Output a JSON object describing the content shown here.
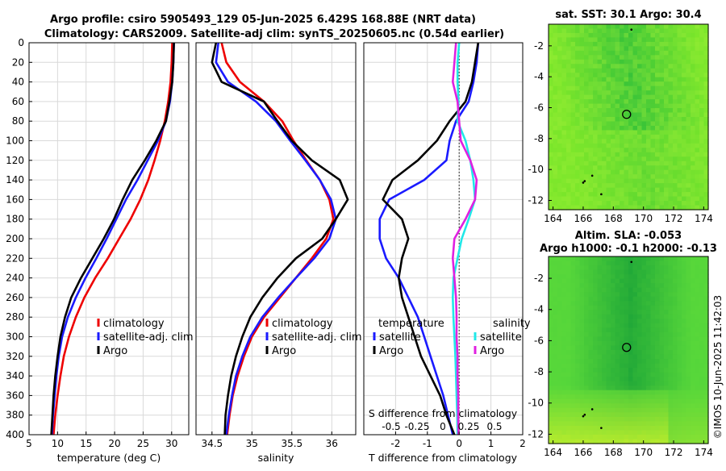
{
  "header": {
    "title_line1": "Argo profile: csiro 5905493_129 05-Jun-2025 6.429S 168.88E (NRT data)",
    "title_line2": "Climatology: CARS2009. Satellite-adj clim: synTS_20250605.nc (0.54d earlier)"
  },
  "colors": {
    "climatology": "#ee0000",
    "satellite": "#1a1aff",
    "argo": "#000000",
    "sal_diff": "#e020e0",
    "sal_sat": "#20e8e8"
  },
  "depth_ticks": [
    "0",
    "20",
    "40",
    "60",
    "80",
    "100",
    "120",
    "140",
    "160",
    "180",
    "200",
    "220",
    "240",
    "260",
    "280",
    "300",
    "320",
    "340",
    "360",
    "380",
    "400"
  ],
  "chart_data": [
    {
      "type": "line",
      "title": "",
      "xlabel": "temperature (deg C)",
      "ylabel": "",
      "xlim": [
        5,
        33
      ],
      "ylim": [
        400,
        0
      ],
      "xticks": [
        "5",
        "10",
        "15",
        "20",
        "25",
        "30"
      ],
      "xtick_values": [
        5,
        10,
        15,
        20,
        25,
        30
      ],
      "depth": [
        0,
        20,
        40,
        60,
        80,
        100,
        120,
        140,
        160,
        180,
        200,
        220,
        240,
        260,
        280,
        300,
        320,
        340,
        360,
        380,
        400
      ],
      "series": [
        {
          "name": "climatology",
          "color_key": "climatology",
          "values": [
            30.1,
            30.0,
            29.8,
            29.4,
            28.8,
            28.0,
            27.0,
            25.9,
            24.5,
            22.8,
            20.8,
            18.8,
            16.6,
            14.7,
            13.2,
            12.0,
            11.1,
            10.5,
            10.0,
            9.6,
            9.3
          ]
        },
        {
          "name": "satellite-adj. clim",
          "color_key": "satellite",
          "values": [
            30.4,
            30.3,
            30.1,
            29.7,
            29.0,
            27.6,
            25.8,
            24.0,
            22.0,
            20.3,
            18.6,
            16.8,
            14.9,
            13.2,
            11.8,
            10.8,
            10.2,
            9.8,
            9.5,
            9.2,
            9.0
          ]
        },
        {
          "name": "Argo",
          "color_key": "argo",
          "values": [
            30.4,
            30.3,
            30.1,
            29.6,
            29.0,
            27.3,
            25.3,
            23.1,
            21.4,
            19.9,
            18.1,
            16.1,
            14.1,
            12.4,
            11.3,
            10.5,
            10.0,
            9.6,
            9.3,
            9.1,
            8.9
          ]
        }
      ],
      "legend": [
        "climatology",
        "satellite-adj. clim",
        "Argo"
      ]
    },
    {
      "type": "line",
      "title": "",
      "xlabel": "salinity",
      "ylabel": "",
      "xlim": [
        34.3,
        36.3
      ],
      "ylim": [
        400,
        0
      ],
      "xticks": [
        "34.5",
        "35",
        "35.5",
        "36"
      ],
      "xtick_values": [
        34.5,
        35.0,
        35.5,
        36.0
      ],
      "depth": [
        0,
        20,
        40,
        60,
        80,
        100,
        120,
        140,
        160,
        180,
        200,
        220,
        240,
        260,
        280,
        300,
        320,
        340,
        360,
        380,
        400
      ],
      "series": [
        {
          "name": "climatology",
          "color_key": "climatology",
          "values": [
            34.62,
            34.68,
            34.85,
            35.15,
            35.38,
            35.52,
            35.68,
            35.85,
            35.97,
            36.02,
            35.93,
            35.75,
            35.55,
            35.35,
            35.15,
            35.0,
            34.9,
            34.82,
            34.76,
            34.72,
            34.69
          ]
        },
        {
          "name": "satellite-adj. clim",
          "color_key": "satellite",
          "values": [
            34.58,
            34.55,
            34.7,
            35.05,
            35.3,
            35.48,
            35.67,
            35.85,
            35.99,
            36.05,
            35.97,
            35.78,
            35.55,
            35.33,
            35.13,
            34.98,
            34.88,
            34.8,
            34.75,
            34.71,
            34.68
          ]
        },
        {
          "name": "Argo",
          "color_key": "argo",
          "values": [
            34.55,
            34.5,
            34.62,
            35.15,
            35.32,
            35.5,
            35.75,
            36.1,
            36.2,
            36.05,
            35.88,
            35.55,
            35.32,
            35.13,
            34.98,
            34.88,
            34.8,
            34.74,
            34.7,
            34.67,
            34.66
          ]
        }
      ],
      "legend": [
        "climatology",
        "satellite-adj. clim",
        "Argo"
      ]
    },
    {
      "type": "line",
      "title": "",
      "xlabel": "T difference from climatology",
      "xlabel_top": "S difference from climatology",
      "ylabel": "",
      "xlim": [
        -3,
        2
      ],
      "ylim": [
        400,
        0
      ],
      "xticks": [
        "-2",
        "-1",
        "0",
        "1",
        "2"
      ],
      "xtick_values": [
        -2,
        -1,
        0,
        1,
        2
      ],
      "s_xticks": [
        "-0.5",
        "-0.25",
        "0",
        "0.25",
        "0.5"
      ],
      "depth": [
        0,
        20,
        40,
        60,
        80,
        100,
        120,
        140,
        160,
        180,
        200,
        220,
        240,
        260,
        280,
        300,
        320,
        340,
        360,
        380,
        400
      ],
      "series": [
        {
          "name": "temperature satellite",
          "color_key": "satellite",
          "values": [
            0.6,
            0.55,
            0.45,
            0.3,
            -0.1,
            -0.3,
            -0.4,
            -1.1,
            -2.2,
            -2.5,
            -2.5,
            -2.3,
            -1.9,
            -1.6,
            -1.3,
            -1.1,
            -0.9,
            -0.7,
            -0.5,
            -0.35,
            -0.2
          ]
        },
        {
          "name": "temperature Argo",
          "color_key": "argo",
          "values": [
            0.6,
            0.5,
            0.4,
            0.2,
            -0.3,
            -0.7,
            -1.3,
            -2.1,
            -2.4,
            -1.8,
            -1.6,
            -1.8,
            -1.9,
            -1.8,
            -1.6,
            -1.4,
            -1.2,
            -0.9,
            -0.6,
            -0.4,
            -0.15
          ]
        },
        {
          "name": "salinity satellite",
          "color_key": "sal_sat",
          "values": [
            0.0,
            -0.05,
            -0.05,
            -0.02,
            -0.05,
            0.2,
            0.35,
            0.45,
            0.5,
            0.3,
            0.08,
            -0.05,
            -0.18,
            -0.2,
            -0.18,
            -0.15,
            -0.12,
            -0.1,
            -0.08,
            -0.06,
            -0.05
          ]
        },
        {
          "name": "salinity Argo",
          "color_key": "sal_diff",
          "values": [
            -0.1,
            -0.15,
            -0.2,
            -0.05,
            0.0,
            0.05,
            0.35,
            0.55,
            0.5,
            0.2,
            -0.15,
            -0.2,
            -0.15,
            -0.1,
            -0.08,
            -0.08,
            -0.05,
            -0.05,
            -0.03,
            -0.03,
            -0.02
          ]
        }
      ],
      "legend_left": {
        "title": "temperature",
        "items": [
          "satellite",
          "Argo"
        ]
      },
      "legend_right": {
        "title": "salinity",
        "items": [
          "satellite",
          "Argo"
        ]
      }
    },
    {
      "type": "heatmap",
      "title": "sat. SST: 30.1 Argo: 30.4",
      "xticks": [
        "164",
        "166",
        "168",
        "170",
        "172",
        "174"
      ],
      "yticks": [
        "-2",
        "-4",
        "-6",
        "-8",
        "-10",
        "-12"
      ],
      "xlim": [
        163.7,
        174.3
      ],
      "ylim": [
        -12.6,
        -0.6
      ],
      "marker": {
        "lon": 168.88,
        "lat": -6.43
      }
    },
    {
      "type": "heatmap",
      "title_line1": "Altim. SLA: -0.053",
      "title_line2": "Argo h1000: -0.1 h2000: -0.13",
      "xticks": [
        "164",
        "166",
        "168",
        "170",
        "172",
        "174"
      ],
      "yticks": [
        "-2",
        "-4",
        "-6",
        "-8",
        "-10",
        "-12"
      ],
      "xlim": [
        163.7,
        174.3
      ],
      "ylim": [
        -12.6,
        -0.6
      ],
      "marker": {
        "lon": 168.88,
        "lat": -6.43
      }
    }
  ],
  "footer": {
    "credit": "©IMOS 10-Jun-2025 11:42:03"
  }
}
